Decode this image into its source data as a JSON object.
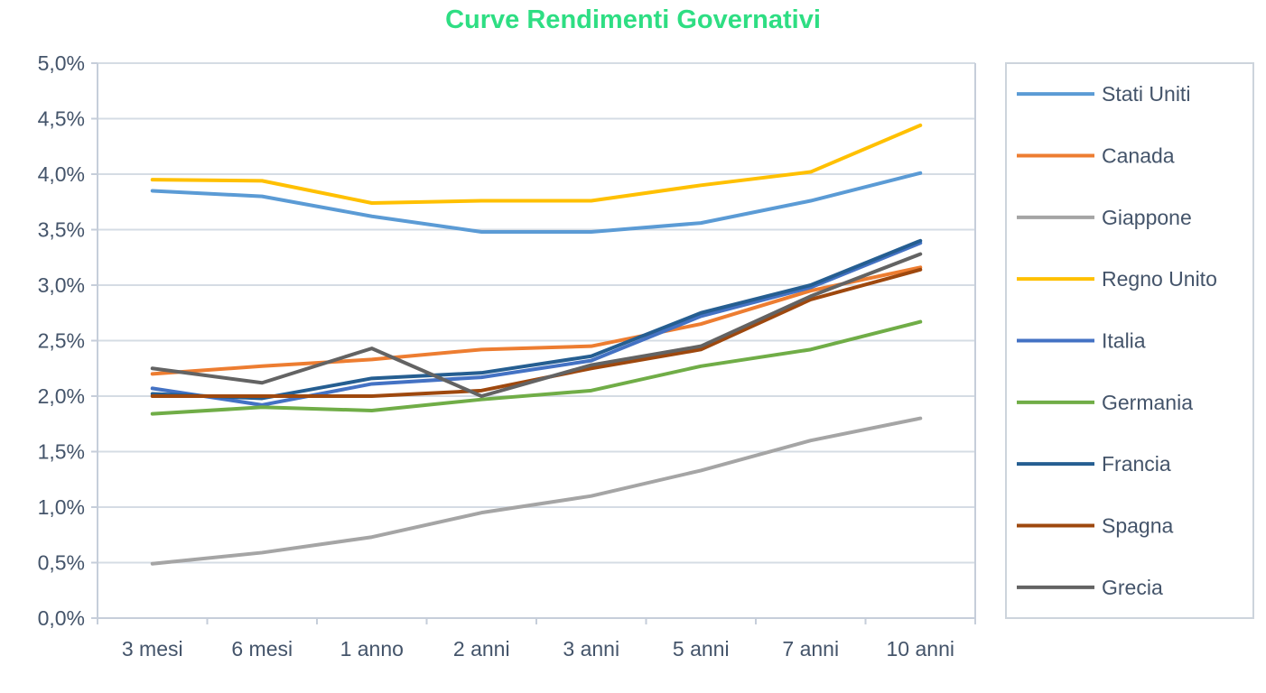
{
  "chart_data": {
    "type": "line",
    "title": "Curve Rendimenti Governativi",
    "xlabel": "",
    "ylabel": "",
    "unit": "percent",
    "categories": [
      "3 mesi",
      "6 mesi",
      "1 anno",
      "2 anni",
      "3 anni",
      "5 anni",
      "7 anni",
      "10 anni"
    ],
    "y_axis": {
      "min": 0,
      "max": 5,
      "step": 0.5,
      "tick_labels_top_to_bottom": [
        "5,0%",
        "4,5%",
        "4,0%",
        "3,5%",
        "3,0%",
        "2,5%",
        "2,0%",
        "1,5%",
        "1,0%",
        "0,5%",
        "0,0%"
      ]
    },
    "grid": true,
    "legend_position": "right",
    "series": [
      {
        "name": "Stati Uniti",
        "color": "#5B9BD5",
        "values": [
          3.85,
          3.8,
          3.62,
          3.48,
          3.48,
          3.56,
          3.76,
          4.01
        ]
      },
      {
        "name": "Canada",
        "color": "#ED7D31",
        "values": [
          2.2,
          2.27,
          2.33,
          2.42,
          2.45,
          2.65,
          2.95,
          3.16
        ]
      },
      {
        "name": "Giappone",
        "color": "#A5A5A5",
        "values": [
          0.49,
          0.59,
          0.73,
          0.95,
          1.1,
          1.33,
          1.6,
          1.8
        ]
      },
      {
        "name": "Regno Unito",
        "color": "#FFC000",
        "values": [
          3.95,
          3.94,
          3.74,
          3.76,
          3.76,
          3.9,
          4.02,
          4.44
        ]
      },
      {
        "name": "Italia",
        "color": "#4472C4",
        "values": [
          2.07,
          1.92,
          2.11,
          2.17,
          2.32,
          2.72,
          2.98,
          3.38
        ]
      },
      {
        "name": "Germania",
        "color": "#70AD47",
        "values": [
          1.84,
          1.9,
          1.87,
          1.97,
          2.05,
          2.27,
          2.42,
          2.67
        ]
      },
      {
        "name": "Francia",
        "color": "#255E91",
        "values": [
          2.02,
          1.98,
          2.16,
          2.21,
          2.36,
          2.75,
          3.0,
          3.4
        ]
      },
      {
        "name": "Spagna",
        "color": "#9E480E",
        "values": [
          2.0,
          2.0,
          2.0,
          2.05,
          2.25,
          2.42,
          2.87,
          3.14
        ]
      },
      {
        "name": "Grecia",
        "color": "#636363",
        "values": [
          2.25,
          2.12,
          2.43,
          2.0,
          2.28,
          2.45,
          2.9,
          3.28
        ]
      }
    ]
  },
  "style": {
    "title_color": "#2EDE83",
    "axis_text_color": "#44546A",
    "gridline_color": "#D5DCE4",
    "axis_line_color": "#C6CEDA",
    "legend_border_color": "#CDD4DC",
    "background": "#FFFFFF"
  }
}
